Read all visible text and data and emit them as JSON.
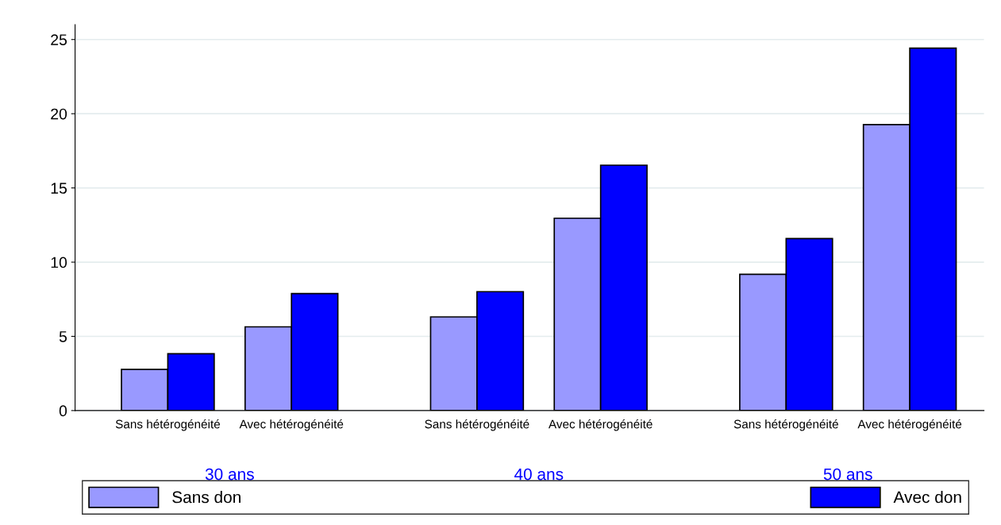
{
  "chart_data": {
    "type": "bar",
    "categories": [
      "Sans hétérogénéité",
      "Avec hétérogénéité",
      "Sans hétérogénéité",
      "Avec hétérogénéité",
      "Sans hétérogénéité",
      "Avec hétérogénéité"
    ],
    "series": [
      {
        "name": "Sans don",
        "color": "#9999ff",
        "values": [
          2.77,
          5.64,
          6.31,
          12.96,
          9.18,
          19.27
        ]
      },
      {
        "name": "Avec don",
        "color": "#0000ff",
        "values": [
          3.83,
          7.88,
          8.01,
          16.53,
          11.59,
          24.42
        ]
      }
    ],
    "annotations": [
      "30 ans",
      "40 ans",
      "50 ans"
    ],
    "ylim": [
      0,
      26
    ],
    "yticks": [
      0,
      5,
      10,
      15,
      20,
      25
    ],
    "grid": "y",
    "legend": "bottom"
  }
}
